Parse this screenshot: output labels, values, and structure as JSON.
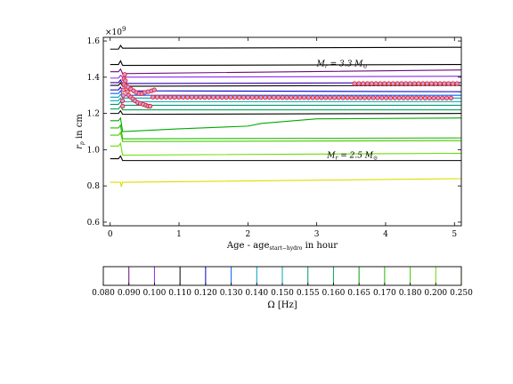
{
  "chart_data": [
    {
      "type": "line",
      "xlabel": "Age - age",
      "xlabel_sub": "start−hydro",
      "xlabel_suffix": " in hour",
      "ylabel": "r",
      "ylabel_sub": "p",
      "ylabel_suffix": " in cm",
      "y_offset_text": "×10",
      "y_offset_exp": "9",
      "xlim": [
        -0.1,
        5.1
      ],
      "ylim": [
        0.58,
        1.62
      ],
      "xticks": [
        0,
        1,
        2,
        3,
        4,
        5
      ],
      "yticks": [
        0.6,
        0.8,
        1.0,
        1.2,
        1.4,
        1.6
      ],
      "ytick_labels": [
        "0.6",
        "0.8",
        "1.0",
        "1.2",
        "1.4",
        "1.6"
      ],
      "grid": false,
      "annotations": [
        {
          "label": "M",
          "sub": "r",
          "rest": " = 3.3 M",
          "odot": "⊙",
          "x": 3.0,
          "y": 1.46
        },
        {
          "label": "M",
          "sub": "r",
          "rest": " = 2.5 M",
          "odot": "⊙",
          "x": 3.15,
          "y": 0.955
        }
      ],
      "series": [
        {
          "color": "#000000",
          "values": [
            [
              0.0,
              1.555
            ],
            [
              0.12,
              1.555
            ],
            [
              0.15,
              1.575
            ],
            [
              0.18,
              1.56
            ],
            [
              5.1,
              1.565
            ]
          ]
        },
        {
          "color": "#000000",
          "values": [
            [
              0.0,
              1.47
            ],
            [
              0.12,
              1.47
            ],
            [
              0.15,
              1.49
            ],
            [
              0.18,
              1.465
            ],
            [
              5.1,
              1.47
            ]
          ]
        },
        {
          "color": "#6a0d7a",
          "values": [
            [
              0.0,
              1.43
            ],
            [
              0.12,
              1.43
            ],
            [
              0.15,
              1.445
            ],
            [
              0.18,
              1.42
            ],
            [
              5.1,
              1.44
            ]
          ]
        },
        {
          "color": "#8a2be2",
          "values": [
            [
              0.0,
              1.395
            ],
            [
              0.12,
              1.395
            ],
            [
              0.15,
              1.41
            ],
            [
              0.18,
              1.4
            ],
            [
              5.1,
              1.405
            ]
          ]
        },
        {
          "color": "#3300aa",
          "values": [
            [
              0.0,
              1.37
            ],
            [
              0.12,
              1.37
            ],
            [
              0.15,
              1.385
            ],
            [
              0.18,
              1.365
            ],
            [
              5.1,
              1.37
            ]
          ]
        },
        {
          "color": "#000000",
          "values": [
            [
              0.0,
              1.355
            ],
            [
              0.12,
              1.355
            ],
            [
              0.15,
              1.37
            ],
            [
              0.18,
              1.35
            ],
            [
              5.1,
              1.355
            ]
          ]
        },
        {
          "color": "#0000cc",
          "values": [
            [
              0.0,
              1.33
            ],
            [
              0.12,
              1.33
            ],
            [
              0.15,
              1.345
            ],
            [
              0.18,
              1.325
            ],
            [
              5.1,
              1.32
            ]
          ]
        },
        {
          "color": "#0066ff",
          "values": [
            [
              0.0,
              1.31
            ],
            [
              0.12,
              1.31
            ],
            [
              0.15,
              1.325
            ],
            [
              0.18,
              1.3
            ],
            [
              5.1,
              1.3
            ]
          ]
        },
        {
          "color": "#0099cc",
          "values": [
            [
              0.0,
              1.29
            ],
            [
              0.12,
              1.29
            ],
            [
              0.15,
              1.305
            ],
            [
              0.18,
              1.285
            ],
            [
              5.1,
              1.285
            ]
          ]
        },
        {
          "color": "#00aaaa",
          "values": [
            [
              0.0,
              1.27
            ],
            [
              0.12,
              1.27
            ],
            [
              0.15,
              1.285
            ],
            [
              0.18,
              1.265
            ],
            [
              5.1,
              1.265
            ]
          ]
        },
        {
          "color": "#009977",
          "values": [
            [
              0.0,
              1.25
            ],
            [
              0.12,
              1.25
            ],
            [
              0.15,
              1.265
            ],
            [
              0.18,
              1.245
            ],
            [
              5.1,
              1.245
            ]
          ]
        },
        {
          "color": "#00aa55",
          "values": [
            [
              0.0,
              1.225
            ],
            [
              0.12,
              1.225
            ],
            [
              0.15,
              1.24
            ],
            [
              0.18,
              1.22
            ],
            [
              5.1,
              1.22
            ]
          ]
        },
        {
          "color": "#000000",
          "values": [
            [
              0.0,
              1.2
            ],
            [
              0.12,
              1.2
            ],
            [
              0.15,
              1.215
            ],
            [
              0.18,
              1.195
            ],
            [
              5.1,
              1.2
            ]
          ]
        },
        {
          "color": "#00aa00",
          "values": [
            [
              0.0,
              1.16
            ],
            [
              0.12,
              1.16
            ],
            [
              0.15,
              1.175
            ],
            [
              0.18,
              1.1
            ],
            [
              1.0,
              1.115
            ],
            [
              2.0,
              1.13
            ],
            [
              2.2,
              1.145
            ],
            [
              3.0,
              1.17
            ],
            [
              5.1,
              1.175
            ]
          ]
        },
        {
          "color": "#22bb00",
          "values": [
            [
              0.0,
              1.12
            ],
            [
              0.12,
              1.12
            ],
            [
              0.15,
              1.135
            ],
            [
              0.18,
              1.06
            ],
            [
              5.1,
              1.065
            ]
          ]
        },
        {
          "color": "#44cc00",
          "values": [
            [
              0.0,
              1.08
            ],
            [
              0.12,
              1.08
            ],
            [
              0.15,
              1.095
            ],
            [
              0.18,
              1.045
            ],
            [
              5.1,
              1.05
            ]
          ]
        },
        {
          "color": "#66dd00",
          "values": [
            [
              0.0,
              1.02
            ],
            [
              0.12,
              1.02
            ],
            [
              0.15,
              1.035
            ],
            [
              0.18,
              0.97
            ],
            [
              5.1,
              0.98
            ]
          ]
        },
        {
          "color": "#000000",
          "values": [
            [
              0.0,
              0.95
            ],
            [
              0.12,
              0.95
            ],
            [
              0.15,
              0.965
            ],
            [
              0.18,
              0.94
            ],
            [
              5.1,
              0.94
            ]
          ]
        },
        {
          "color": "#dddd00",
          "values": [
            [
              0.0,
              0.82
            ],
            [
              0.12,
              0.82
            ],
            [
              0.15,
              0.82
            ],
            [
              0.16,
              0.795
            ],
            [
              0.18,
              0.82
            ],
            [
              5.1,
              0.84
            ]
          ]
        }
      ],
      "markers": {
        "edge_color": "#ee2222",
        "face_color": "#c8a0e0",
        "clusters": [
          {
            "points": [
              [
                0.18,
                1.24
              ],
              [
                0.18,
                1.27
              ],
              [
                0.19,
                1.3
              ],
              [
                0.19,
                1.33
              ],
              [
                0.2,
                1.36
              ],
              [
                0.2,
                1.39
              ],
              [
                0.21,
                1.415
              ],
              [
                0.22,
                1.38
              ],
              [
                0.23,
                1.35
              ],
              [
                0.25,
                1.32
              ],
              [
                0.27,
                1.3
              ],
              [
                0.3,
                1.29
              ],
              [
                0.33,
                1.28
              ],
              [
                0.36,
                1.27
              ],
              [
                0.4,
                1.26
              ],
              [
                0.44,
                1.255
              ],
              [
                0.48,
                1.25
              ],
              [
                0.52,
                1.245
              ],
              [
                0.55,
                1.24
              ],
              [
                0.58,
                1.24
              ]
            ]
          },
          {
            "points": [
              [
                0.26,
                1.345
              ],
              [
                0.3,
                1.335
              ],
              [
                0.34,
                1.325
              ],
              [
                0.38,
                1.315
              ],
              [
                0.42,
                1.31
              ],
              [
                0.46,
                1.31
              ],
              [
                0.5,
                1.315
              ],
              [
                0.55,
                1.32
              ],
              [
                0.6,
                1.325
              ],
              [
                0.64,
                1.33
              ]
            ]
          },
          {
            "points_line": {
              "from": [
                0.62,
                1.29
              ],
              "to": [
                4.95,
                1.285
              ],
              "n": 70
            }
          },
          {
            "points_line": {
              "from": [
                3.55,
                1.365
              ],
              "to": [
                5.1,
                1.365
              ],
              "n": 26
            }
          }
        ]
      }
    },
    {
      "type": "heatmap",
      "xlabel": "Ω [Hz]",
      "tick_labels": [
        "0.080",
        "0.090",
        "0.100",
        "0.110",
        "0.120",
        "0.130",
        "0.140",
        "0.150",
        "0.155",
        "0.160",
        "0.165",
        "0.170",
        "0.180",
        "0.200",
        "0.250"
      ],
      "band_colors": [
        "#6a0d7a",
        "#8a2be2",
        "#000000",
        "#0000cc",
        "#0066ff",
        "#0099cc",
        "#00aaaa",
        "#009977",
        "#00aa55",
        "#00aa00",
        "#22bb00",
        "#44cc00",
        "#66dd00",
        "#dddd00"
      ]
    }
  ]
}
